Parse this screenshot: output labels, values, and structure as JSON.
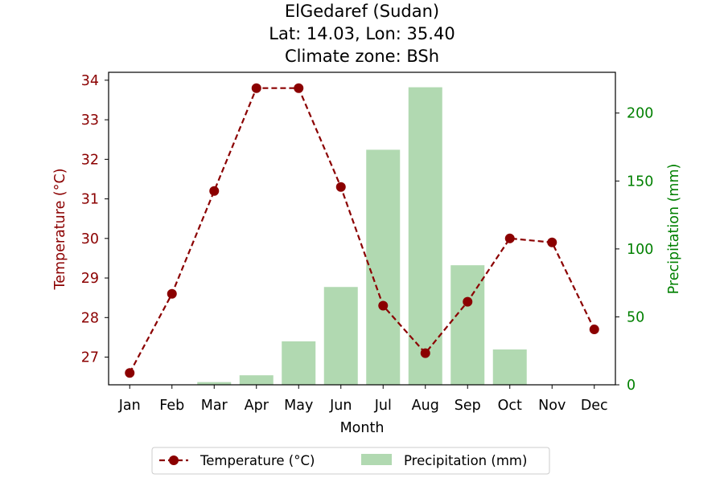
{
  "chart_data": {
    "type": "bar",
    "title_lines": [
      "ElGedaref (Sudan)",
      "Lat: 14.03, Lon: 35.40",
      "Climate zone: BSh"
    ],
    "categories": [
      "Jan",
      "Feb",
      "Mar",
      "Apr",
      "May",
      "Jun",
      "Jul",
      "Aug",
      "Sep",
      "Oct",
      "Nov",
      "Dec"
    ],
    "xlabel": "Month",
    "series": [
      {
        "name": "Temperature (°C)",
        "type": "line",
        "axis": "left",
        "values": [
          26.6,
          28.6,
          31.2,
          33.8,
          33.8,
          31.3,
          28.3,
          27.1,
          28.4,
          30.0,
          29.9,
          27.7
        ],
        "color": "#8b0000",
        "line_style": "dashed",
        "marker": "circle"
      },
      {
        "name": "Precipitation (mm)",
        "type": "bar",
        "axis": "right",
        "values": [
          0,
          0,
          2,
          7,
          32,
          72,
          173,
          219,
          88,
          26,
          0,
          0
        ],
        "color": "#b1d9b1"
      }
    ],
    "y_left": {
      "label": "Temperature (°C)",
      "ylim": [
        26.3,
        34.2
      ],
      "ticks": [
        27,
        28,
        29,
        30,
        31,
        32,
        33,
        34
      ],
      "color": "#8b0000"
    },
    "y_right": {
      "label": "Precipitation (mm)",
      "ylim": [
        0,
        230
      ],
      "ticks": [
        0,
        50,
        100,
        150,
        200
      ],
      "color": "#008000"
    },
    "grid": false,
    "legend_position": "bottom-center"
  }
}
